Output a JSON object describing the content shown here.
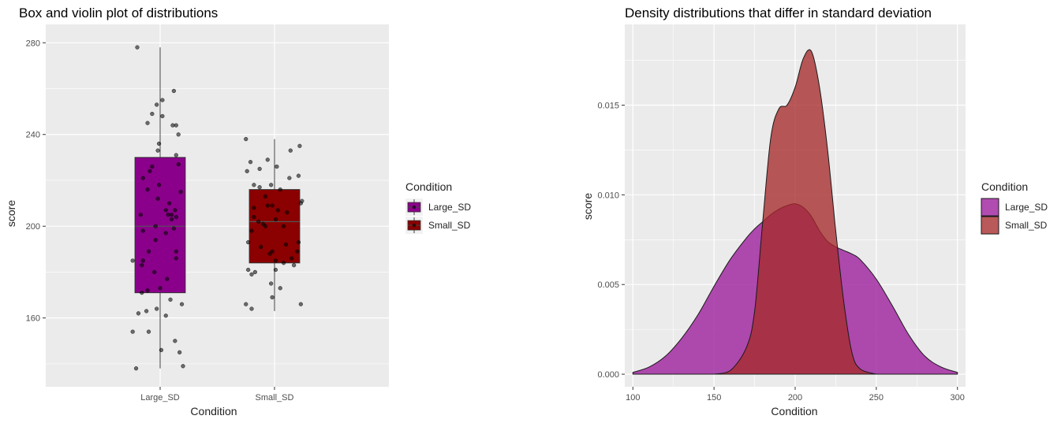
{
  "chart_data": [
    {
      "type": "box",
      "title": "Box and violin plot of distributions",
      "xlabel": "Condition",
      "ylabel": "score",
      "categories": [
        "Large_SD",
        "Small_SD"
      ],
      "ylim": [
        130,
        288
      ],
      "yticks": [
        160,
        200,
        240,
        280
      ],
      "grid": true,
      "legend_title": "Condition",
      "legend_position": "right",
      "series": [
        {
          "name": "Large_SD",
          "color": "#8b008b",
          "box": {
            "min": 138,
            "q1": 171,
            "median": 200,
            "q3": 230,
            "max": 278
          },
          "points": [
            [
              -0.2,
              278
            ],
            [
              0.12,
              259
            ],
            [
              0.02,
              255
            ],
            [
              -0.03,
              253
            ],
            [
              -0.07,
              249
            ],
            [
              0.02,
              248
            ],
            [
              -0.11,
              245
            ],
            [
              0.11,
              244
            ],
            [
              0.14,
              244
            ],
            [
              0.16,
              240
            ],
            [
              -0.01,
              236
            ],
            [
              -0.02,
              233
            ],
            [
              0.14,
              231
            ],
            [
              0.16,
              227
            ],
            [
              -0.07,
              226
            ],
            [
              -0.09,
              224
            ],
            [
              -0.15,
              221
            ],
            [
              -0.01,
              218
            ],
            [
              -0.11,
              216
            ],
            [
              0.18,
              215
            ],
            [
              -0.02,
              212
            ],
            [
              0.08,
              210
            ],
            [
              0.05,
              207
            ],
            [
              0.13,
              207
            ],
            [
              0.1,
              205
            ],
            [
              0.07,
              205
            ],
            [
              0.14,
              204
            ],
            [
              -0.17,
              205
            ],
            [
              0.1,
              203
            ],
            [
              -0.04,
              200
            ],
            [
              0.12,
              199
            ],
            [
              -0.15,
              198
            ],
            [
              0.05,
              197
            ],
            [
              -0.04,
              194
            ],
            [
              0.14,
              189
            ],
            [
              0.14,
              186
            ],
            [
              -0.1,
              189
            ],
            [
              -0.15,
              185
            ],
            [
              -0.24,
              185
            ],
            [
              -0.16,
              183
            ],
            [
              -0.05,
              180
            ],
            [
              0.06,
              177
            ],
            [
              0.0,
              173
            ],
            [
              -0.11,
              172
            ],
            [
              -0.16,
              171
            ],
            [
              0.09,
              168
            ],
            [
              0.19,
              166
            ],
            [
              -0.03,
              164
            ],
            [
              -0.12,
              163
            ],
            [
              -0.19,
              162
            ],
            [
              0.05,
              161
            ],
            [
              -0.24,
              154
            ],
            [
              -0.1,
              154
            ],
            [
              0.13,
              150
            ],
            [
              0.17,
              145
            ],
            [
              0.01,
              146
            ],
            [
              0.2,
              139
            ],
            [
              -0.21,
              138
            ]
          ]
        },
        {
          "name": "Small_SD",
          "color": "#8b0000",
          "box": {
            "min": 163,
            "q1": 184,
            "median": 202,
            "q3": 216,
            "max": 238
          },
          "points": [
            [
              -0.25,
              238
            ],
            [
              0.22,
              235
            ],
            [
              0.14,
              233
            ],
            [
              -0.06,
              229
            ],
            [
              -0.21,
              228
            ],
            [
              0.02,
              226
            ],
            [
              -0.13,
              225
            ],
            [
              -0.24,
              224
            ],
            [
              0.21,
              222
            ],
            [
              0.13,
              221
            ],
            [
              -0.18,
              218
            ],
            [
              -0.03,
              218
            ],
            [
              -0.13,
              217
            ],
            [
              0.05,
              216
            ],
            [
              -0.08,
              213
            ],
            [
              0.24,
              211
            ],
            [
              0.23,
              210
            ],
            [
              -0.02,
              209
            ],
            [
              -0.06,
              209
            ],
            [
              -0.18,
              208
            ],
            [
              0.03,
              207
            ],
            [
              0.11,
              206
            ],
            [
              -0.18,
              204
            ],
            [
              0.01,
              203
            ],
            [
              -0.14,
              202
            ],
            [
              -0.1,
              201
            ],
            [
              0.08,
              200
            ],
            [
              -0.08,
              200
            ],
            [
              -0.2,
              198
            ],
            [
              -0.23,
              193
            ],
            [
              0.21,
              193
            ],
            [
              0.1,
              192
            ],
            [
              -0.12,
              191
            ],
            [
              -0.02,
              189
            ],
            [
              0.2,
              189
            ],
            [
              -0.04,
              188
            ],
            [
              0.15,
              186
            ],
            [
              0.01,
              185
            ],
            [
              0.08,
              184
            ],
            [
              0.17,
              183
            ],
            [
              0.01,
              181
            ],
            [
              -0.23,
              181
            ],
            [
              -0.2,
              179
            ],
            [
              -0.17,
              180
            ],
            [
              -0.03,
              175
            ],
            [
              0.05,
              173
            ],
            [
              -0.02,
              169
            ],
            [
              0.23,
              166
            ],
            [
              -0.25,
              166
            ],
            [
              -0.2,
              164
            ]
          ]
        }
      ]
    },
    {
      "type": "area",
      "title": "Density distributions that differ in standard deviation",
      "xlabel": "Condition",
      "ylabel": "score",
      "xlim": [
        95,
        305
      ],
      "ylim": [
        -0.0007,
        0.0195
      ],
      "xticks": [
        100,
        150,
        200,
        250,
        300
      ],
      "yticks": [
        0.0,
        0.005,
        0.01,
        0.015
      ],
      "ytick_labels": [
        "0.000",
        "0.005",
        "0.010",
        "0.015"
      ],
      "grid": true,
      "legend_title": "Condition",
      "legend_position": "right",
      "x": [
        100,
        110,
        120,
        130,
        140,
        150,
        160,
        170,
        175,
        180,
        185,
        190,
        195,
        200,
        205,
        210,
        215,
        220,
        225,
        230,
        235,
        240,
        250,
        260,
        270,
        280,
        290,
        300
      ],
      "series": [
        {
          "name": "Large_SD",
          "color": "#9b1a9b",
          "values": [
            0.0001,
            0.0004,
            0.001,
            0.002,
            0.0033,
            0.0049,
            0.0064,
            0.0076,
            0.0081,
            0.0085,
            0.0089,
            0.0092,
            0.0094,
            0.0095,
            0.0093,
            0.0088,
            0.008,
            0.0074,
            0.0071,
            0.0069,
            0.0067,
            0.0064,
            0.0053,
            0.0038,
            0.0022,
            0.001,
            0.0004,
            0.0001
          ]
        },
        {
          "name": "Small_SD",
          "color": "#a52a2a",
          "values": [
            0,
            0,
            0,
            0,
            0,
            0,
            0.0002,
            0.0015,
            0.0035,
            0.0085,
            0.0132,
            0.0148,
            0.015,
            0.016,
            0.0176,
            0.018,
            0.016,
            0.0125,
            0.008,
            0.004,
            0.0012,
            0.0003,
            0,
            0,
            0,
            0,
            0,
            0
          ]
        }
      ]
    }
  ]
}
